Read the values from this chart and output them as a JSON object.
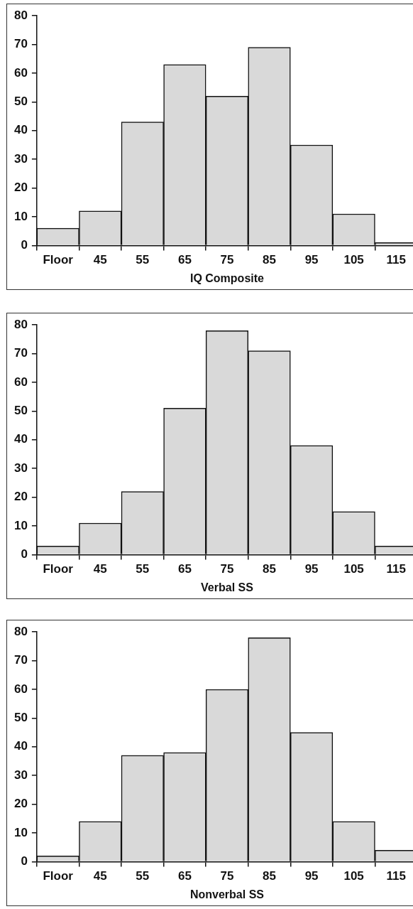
{
  "chart_data": [
    {
      "type": "bar",
      "categories": [
        "Floor",
        "45",
        "55",
        "65",
        "75",
        "85",
        "95",
        "105",
        "115"
      ],
      "values": [
        6,
        12,
        43,
        63,
        52,
        69,
        35,
        11,
        1
      ],
      "color": "#d9d9d9",
      "xlabel": "IQ Composite",
      "ylim": [
        0,
        80
      ],
      "yticks": [
        0,
        10,
        20,
        30,
        40,
        50,
        60,
        70,
        80
      ]
    },
    {
      "type": "bar",
      "categories": [
        "Floor",
        "45",
        "55",
        "65",
        "75",
        "85",
        "95",
        "105",
        "115"
      ],
      "values": [
        3,
        11,
        22,
        51,
        78,
        71,
        38,
        15,
        3
      ],
      "color": "#d9d9d9",
      "xlabel": "Verbal SS",
      "ylim": [
        0,
        80
      ],
      "yticks": [
        0,
        10,
        20,
        30,
        40,
        50,
        60,
        70,
        80
      ]
    },
    {
      "type": "bar",
      "categories": [
        "Floor",
        "45",
        "55",
        "65",
        "75",
        "85",
        "95",
        "105",
        "115"
      ],
      "values": [
        2,
        14,
        37,
        38,
        60,
        78,
        45,
        14,
        4
      ],
      "color": "#d9d9d9",
      "xlabel": "Nonverbal SS",
      "ylim": [
        0,
        80
      ],
      "yticks": [
        0,
        10,
        20,
        30,
        40,
        50,
        60,
        70,
        80
      ]
    }
  ]
}
